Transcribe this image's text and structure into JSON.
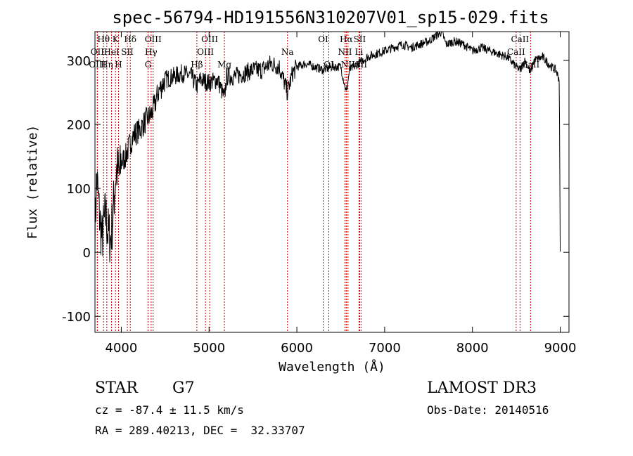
{
  "chart_data": {
    "type": "line",
    "title": "spec-56794-HD191556N310207V01_sp15-029.fits",
    "xlabel": "Wavelength (Å)",
    "ylabel": "Flux (relative)",
    "xlim": [
      3700,
      9100
    ],
    "ylim": [
      -125,
      345
    ],
    "xticks": [
      4000,
      5000,
      6000,
      7000,
      8000,
      9000
    ],
    "yticks": [
      -100,
      0,
      100,
      200,
      300
    ],
    "series": [
      {
        "name": "spectrum",
        "x": [
          3700,
          3720,
          3750,
          3780,
          3800,
          3820,
          3850,
          3880,
          3900,
          3930,
          3950,
          3980,
          4000,
          4050,
          4100,
          4150,
          4200,
          4250,
          4300,
          4340,
          4380,
          4420,
          4500,
          4600,
          4700,
          4800,
          4861,
          4900,
          5000,
          5100,
          5175,
          5200,
          5300,
          5400,
          5500,
          5600,
          5700,
          5800,
          5893,
          5950,
          6000,
          6100,
          6200,
          6300,
          6400,
          6500,
          6563,
          6600,
          6700,
          6800,
          6900,
          7000,
          7100,
          7200,
          7300,
          7400,
          7500,
          7600,
          7650,
          7700,
          7800,
          7900,
          8000,
          8100,
          8200,
          8300,
          8400,
          8498,
          8542,
          8600,
          8662,
          8700,
          8800,
          8900,
          8950,
          8990,
          9000
        ],
        "y": [
          30,
          120,
          60,
          20,
          40,
          60,
          30,
          20,
          50,
          110,
          130,
          120,
          140,
          150,
          170,
          185,
          190,
          200,
          210,
          215,
          230,
          250,
          270,
          275,
          280,
          275,
          260,
          270,
          265,
          270,
          240,
          275,
          275,
          280,
          285,
          285,
          295,
          290,
          250,
          280,
          290,
          295,
          290,
          285,
          290,
          290,
          250,
          285,
          295,
          305,
          310,
          315,
          320,
          325,
          320,
          325,
          330,
          340,
          345,
          325,
          330,
          325,
          315,
          320,
          315,
          310,
          305,
          290,
          285,
          300,
          280,
          300,
          305,
          290,
          285,
          270,
          0
        ]
      }
    ],
    "lines": [
      {
        "label": "Hθ",
        "x": 3798,
        "row": 0
      },
      {
        "label": "K",
        "x": 3934,
        "row": 0
      },
      {
        "label": "Hδ",
        "x": 4102,
        "row": 0
      },
      {
        "label": "OIII",
        "x": 4363,
        "row": 0
      },
      {
        "label": "OIII",
        "x": 5007,
        "row": 0
      },
      {
        "label": "OI",
        "x": 6300,
        "row": 0
      },
      {
        "label": "Hα",
        "x": 6563,
        "row": 0
      },
      {
        "label": "SII",
        "x": 6716,
        "row": 0
      },
      {
        "label": "CaII",
        "x": 8542,
        "row": 0
      },
      {
        "label": "OII",
        "x": 3727,
        "row": 1
      },
      {
        "label": "HeI",
        "x": 3889,
        "row": 1
      },
      {
        "label": "SII",
        "x": 4069,
        "row": 1
      },
      {
        "label": "Hγ",
        "x": 4340,
        "row": 1
      },
      {
        "label": "OIII",
        "x": 4959,
        "row": 1
      },
      {
        "label": "Na",
        "x": 5893,
        "row": 1
      },
      {
        "label": "NII",
        "x": 6548,
        "row": 1
      },
      {
        "label": "Li",
        "x": 6708,
        "row": 1
      },
      {
        "label": "CaII",
        "x": 8498,
        "row": 1
      },
      {
        "label": "OIII",
        "x": 3727,
        "row": 2
      },
      {
        "label": "Hη",
        "x": 3835,
        "row": 2
      },
      {
        "label": "H",
        "x": 3968,
        "row": 2
      },
      {
        "label": "G",
        "x": 4305,
        "row": 2
      },
      {
        "label": "Hβ",
        "x": 4861,
        "row": 2
      },
      {
        "label": "Mg",
        "x": 5175,
        "row": 2
      },
      {
        "label": "OI",
        "x": 6364,
        "row": 2
      },
      {
        "label": "NII",
        "x": 6583,
        "row": 2
      },
      {
        "label": "SII",
        "x": 6731,
        "row": 2
      },
      {
        "label": "CaII",
        "x": 8662,
        "row": 2
      }
    ]
  },
  "footer": {
    "class_label": "STAR",
    "subclass": "G7",
    "survey": "LAMOST DR3",
    "cz": "cz = -87.4 ± 11.5 km/s",
    "obs_date": "Obs-Date: 20140516",
    "coords": "RA = 289.40213, DEC =  32.33707"
  }
}
